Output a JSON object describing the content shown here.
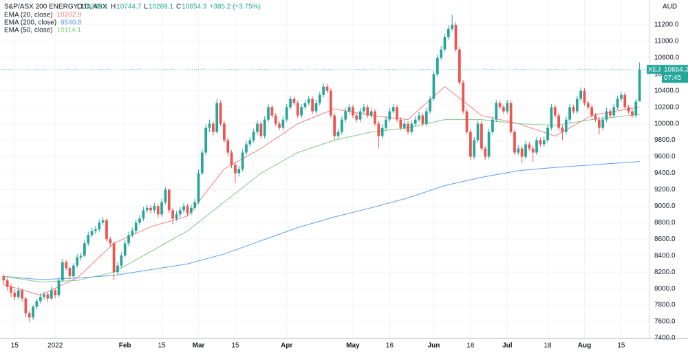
{
  "chart_data": {
    "type": "candlestick",
    "title": "S&P/ASX 200 ENERGY, 1D, ASX",
    "header_values": [
      {
        "label": "O",
        "value": 10269.1
      },
      {
        "label": "H",
        "value": 10744.7
      },
      {
        "label": "L",
        "value": 10269.1
      },
      {
        "label": "C",
        "value": 10654.3
      }
    ],
    "change": "+385.2 (+3.75%)",
    "currency": "AUD",
    "symbol": "XEJ",
    "countdown": "07:45",
    "up_color": "#26a69a",
    "down_color": "#ef5350",
    "grid": true,
    "xlim": [
      -1,
      175.5
    ],
    "ylim": [
      7400,
      11500
    ],
    "xticks": [
      {
        "value": 3,
        "label": "15"
      },
      {
        "value": 14,
        "label": "2022"
      },
      {
        "value": 33,
        "label": "Feb"
      },
      {
        "value": 43,
        "label": "15"
      },
      {
        "value": 53,
        "label": "Mar"
      },
      {
        "value": 63,
        "label": "15"
      },
      {
        "value": 77,
        "label": "Apr"
      },
      {
        "value": 95,
        "label": "May"
      },
      {
        "value": 105,
        "label": "16"
      },
      {
        "value": 117,
        "label": "Jun"
      },
      {
        "value": 127,
        "label": "16"
      },
      {
        "value": 137,
        "label": "Jul"
      },
      {
        "value": 148,
        "label": "18"
      },
      {
        "value": 158,
        "label": "Aug"
      },
      {
        "value": 168,
        "label": "15"
      }
    ],
    "yticks": [
      {
        "value": 7400,
        "label": "7400.0"
      },
      {
        "value": 7600,
        "label": "7600.0"
      },
      {
        "value": 7800,
        "label": "7800.0"
      },
      {
        "value": 8000,
        "label": "8000.0"
      },
      {
        "value": 8200,
        "label": "8200.0"
      },
      {
        "value": 8400,
        "label": "8400.0"
      },
      {
        "value": 8600,
        "label": "8600.0"
      },
      {
        "value": 8800,
        "label": "8800.0"
      },
      {
        "value": 9000,
        "label": "9000.0"
      },
      {
        "value": 9200,
        "label": "9200.0"
      },
      {
        "value": 9400,
        "label": "9400.0"
      },
      {
        "value": 9600,
        "label": "9600.0"
      },
      {
        "value": 9800,
        "label": "9800.0"
      },
      {
        "value": 10000,
        "label": "10000.0"
      },
      {
        "value": 10200,
        "label": "10200.0"
      },
      {
        "value": 10400,
        "label": "10400.0"
      },
      {
        "value": 10600,
        "label": "10600.0"
      },
      {
        "value": 10800,
        "label": "10800.0"
      },
      {
        "value": 11000,
        "label": "11000.0"
      },
      {
        "value": 11200,
        "label": "11200.0"
      }
    ],
    "ohlc": [
      [
        8150,
        8180,
        8050,
        8100
      ],
      [
        8100,
        8130,
        7980,
        8020
      ],
      [
        8020,
        8060,
        7900,
        7950
      ],
      [
        7950,
        7990,
        7860,
        7900
      ],
      [
        7900,
        8020,
        7870,
        7980
      ],
      [
        7980,
        8000,
        7840,
        7880
      ],
      [
        7880,
        7900,
        7650,
        7700
      ],
      [
        7700,
        7730,
        7600,
        7650
      ],
      [
        7650,
        7800,
        7620,
        7780
      ],
      [
        7780,
        7880,
        7750,
        7850
      ],
      [
        7850,
        7940,
        7820,
        7900
      ],
      [
        7900,
        7960,
        7870,
        7930
      ],
      [
        7930,
        7950,
        7840,
        7880
      ],
      [
        7880,
        8020,
        7860,
        7980
      ],
      [
        7980,
        8000,
        7880,
        7920
      ],
      [
        7920,
        8130,
        7900,
        8100
      ],
      [
        8100,
        8360,
        8080,
        8320
      ],
      [
        8320,
        8350,
        8220,
        8250
      ],
      [
        8250,
        8270,
        8110,
        8150
      ],
      [
        8150,
        8310,
        8130,
        8280
      ],
      [
        8280,
        8420,
        8250,
        8380
      ],
      [
        8380,
        8440,
        8340,
        8400
      ],
      [
        8400,
        8590,
        8380,
        8550
      ],
      [
        8550,
        8690,
        8520,
        8650
      ],
      [
        8650,
        8740,
        8620,
        8700
      ],
      [
        8700,
        8760,
        8660,
        8720
      ],
      [
        8720,
        8840,
        8690,
        8800
      ],
      [
        8800,
        8870,
        8770,
        8830
      ],
      [
        8830,
        8850,
        8570,
        8600
      ],
      [
        8600,
        8630,
        8510,
        8550
      ],
      [
        8550,
        8570,
        8100,
        8200
      ],
      [
        8200,
        8320,
        8170,
        8280
      ],
      [
        8280,
        8440,
        8250,
        8400
      ],
      [
        8400,
        8590,
        8380,
        8550
      ],
      [
        8550,
        8690,
        8520,
        8650
      ],
      [
        8650,
        8740,
        8620,
        8700
      ],
      [
        8700,
        8840,
        8670,
        8800
      ],
      [
        8800,
        8890,
        8770,
        8850
      ],
      [
        8850,
        8990,
        8820,
        8950
      ],
      [
        8950,
        9020,
        8920,
        8980
      ],
      [
        8980,
        9010,
        8910,
        8950
      ],
      [
        8950,
        9040,
        8920,
        9000
      ],
      [
        9000,
        9030,
        8860,
        8900
      ],
      [
        8900,
        9090,
        8870,
        9050
      ],
      [
        9050,
        9230,
        9020,
        9200
      ],
      [
        9200,
        9210,
        8920,
        8950
      ],
      [
        8950,
        8980,
        8780,
        8850
      ],
      [
        8850,
        8940,
        8820,
        8900
      ],
      [
        8900,
        8990,
        8870,
        8950
      ],
      [
        8950,
        9040,
        8920,
        9000
      ],
      [
        9000,
        9030,
        8880,
        8920
      ],
      [
        8920,
        9020,
        8890,
        8980
      ],
      [
        8980,
        9090,
        8950,
        9050
      ],
      [
        9050,
        9440,
        9030,
        9400
      ],
      [
        9400,
        9690,
        9380,
        9650
      ],
      [
        9650,
        9990,
        9620,
        9950
      ],
      [
        9950,
        10050,
        9900,
        10000
      ],
      [
        10000,
        10030,
        9860,
        9900
      ],
      [
        9900,
        10300,
        9880,
        10250
      ],
      [
        10250,
        10280,
        9970,
        10000
      ],
      [
        10000,
        10030,
        9770,
        9800
      ],
      [
        9800,
        9830,
        9610,
        9650
      ],
      [
        9650,
        9680,
        9460,
        9500
      ],
      [
        9500,
        9530,
        9280,
        9400
      ],
      [
        9400,
        9490,
        9360,
        9450
      ],
      [
        9450,
        9690,
        9420,
        9650
      ],
      [
        9650,
        9790,
        9620,
        9750
      ],
      [
        9750,
        9840,
        9720,
        9800
      ],
      [
        9800,
        9940,
        9770,
        9900
      ],
      [
        9900,
        10040,
        9870,
        10000
      ],
      [
        10000,
        10030,
        9820,
        9850
      ],
      [
        9850,
        10090,
        9820,
        10050
      ],
      [
        10050,
        10240,
        10020,
        10200
      ],
      [
        10200,
        10230,
        10070,
        10100
      ],
      [
        10100,
        10130,
        9970,
        10000
      ],
      [
        10000,
        10030,
        9920,
        9950
      ],
      [
        9950,
        10090,
        9920,
        10050
      ],
      [
        10050,
        10240,
        10020,
        10200
      ],
      [
        10200,
        10340,
        10170,
        10300
      ],
      [
        10300,
        10330,
        10220,
        10250
      ],
      [
        10250,
        10280,
        10070,
        10100
      ],
      [
        10100,
        10240,
        10070,
        10200
      ],
      [
        10200,
        10290,
        10170,
        10250
      ],
      [
        10250,
        10340,
        10220,
        10300
      ],
      [
        10300,
        10330,
        10120,
        10150
      ],
      [
        10150,
        10290,
        10120,
        10250
      ],
      [
        10250,
        10390,
        10220,
        10350
      ],
      [
        10350,
        10490,
        10320,
        10450
      ],
      [
        10450,
        10480,
        10370,
        10400
      ],
      [
        10400,
        10430,
        10070,
        10100
      ],
      [
        10100,
        10130,
        9800,
        9850
      ],
      [
        9850,
        9940,
        9820,
        9900
      ],
      [
        9900,
        10090,
        9870,
        10050
      ],
      [
        10050,
        10190,
        10020,
        10150
      ],
      [
        10150,
        10240,
        10120,
        10200
      ],
      [
        10200,
        10230,
        10070,
        10100
      ],
      [
        10100,
        10130,
        10020,
        10050
      ],
      [
        10050,
        10190,
        10020,
        10150
      ],
      [
        10150,
        10240,
        10120,
        10200
      ],
      [
        10200,
        10230,
        10070,
        10100
      ],
      [
        10100,
        10190,
        10070,
        10150
      ],
      [
        10150,
        10180,
        9970,
        10000
      ],
      [
        10000,
        10030,
        9700,
        9850
      ],
      [
        9850,
        9990,
        9820,
        9950
      ],
      [
        9950,
        10090,
        9920,
        10050
      ],
      [
        10050,
        10190,
        10020,
        10150
      ],
      [
        10150,
        10240,
        10120,
        10200
      ],
      [
        10200,
        10230,
        10020,
        10050
      ],
      [
        10050,
        10080,
        9920,
        9950
      ],
      [
        9950,
        10040,
        9920,
        10000
      ],
      [
        10000,
        10030,
        9870,
        9900
      ],
      [
        9900,
        10040,
        9870,
        10000
      ],
      [
        10000,
        10090,
        9970,
        10050
      ],
      [
        10050,
        10140,
        10020,
        10100
      ],
      [
        10100,
        10130,
        9970,
        10000
      ],
      [
        10000,
        10190,
        9970,
        10150
      ],
      [
        10150,
        10340,
        10120,
        10300
      ],
      [
        10300,
        10640,
        10270,
        10600
      ],
      [
        10600,
        10840,
        10570,
        10800
      ],
      [
        10800,
        10940,
        10770,
        10900
      ],
      [
        10900,
        11090,
        10870,
        11050
      ],
      [
        11050,
        11190,
        11020,
        11150
      ],
      [
        11150,
        11320,
        11120,
        11200
      ],
      [
        11200,
        11230,
        10870,
        10900
      ],
      [
        10900,
        10930,
        10470,
        10500
      ],
      [
        10500,
        10530,
        10120,
        10150
      ],
      [
        10150,
        10180,
        9870,
        9900
      ],
      [
        9900,
        9930,
        9560,
        9600
      ],
      [
        9600,
        9840,
        9570,
        9800
      ],
      [
        9800,
        10040,
        9770,
        10000
      ],
      [
        10000,
        10030,
        9670,
        9700
      ],
      [
        9700,
        9730,
        9560,
        9600
      ],
      [
        9600,
        9940,
        9570,
        9900
      ],
      [
        9900,
        10090,
        9870,
        10050
      ],
      [
        10050,
        10290,
        10020,
        10250
      ],
      [
        10250,
        10280,
        10170,
        10200
      ],
      [
        10200,
        10230,
        10120,
        10150
      ],
      [
        10150,
        10290,
        10120,
        10250
      ],
      [
        10250,
        10280,
        9870,
        9900
      ],
      [
        9900,
        9930,
        9620,
        9650
      ],
      [
        9650,
        9740,
        9620,
        9700
      ],
      [
        9700,
        9730,
        9520,
        9600
      ],
      [
        9600,
        9790,
        9570,
        9750
      ],
      [
        9750,
        9780,
        9670,
        9700
      ],
      [
        9700,
        9730,
        9540,
        9650
      ],
      [
        9650,
        9840,
        9620,
        9800
      ],
      [
        9800,
        9830,
        9720,
        9750
      ],
      [
        9750,
        9840,
        9720,
        9800
      ],
      [
        9800,
        9990,
        9770,
        9950
      ],
      [
        9950,
        10240,
        9920,
        10200
      ],
      [
        10200,
        10230,
        10070,
        10100
      ],
      [
        10100,
        10130,
        9920,
        9950
      ],
      [
        9950,
        9980,
        9800,
        9900
      ],
      [
        9900,
        10090,
        9870,
        10050
      ],
      [
        10050,
        10240,
        10020,
        10200
      ],
      [
        10200,
        10230,
        10120,
        10150
      ],
      [
        10150,
        10340,
        10120,
        10300
      ],
      [
        10300,
        10440,
        10270,
        10400
      ],
      [
        10400,
        10430,
        10220,
        10250
      ],
      [
        10250,
        10280,
        10170,
        10200
      ],
      [
        10200,
        10230,
        10070,
        10100
      ],
      [
        10100,
        10130,
        10020,
        10050
      ],
      [
        10050,
        10080,
        9870,
        9950
      ],
      [
        9950,
        10090,
        9920,
        10050
      ],
      [
        10050,
        10190,
        10020,
        10150
      ],
      [
        10150,
        10180,
        10070,
        10100
      ],
      [
        10100,
        10240,
        10070,
        10200
      ],
      [
        10200,
        10340,
        10170,
        10300
      ],
      [
        10300,
        10390,
        10270,
        10350
      ],
      [
        10350,
        10380,
        10170,
        10200
      ],
      [
        10200,
        10230,
        10120,
        10150
      ],
      [
        10150,
        10180,
        10070,
        10100
      ],
      [
        10100,
        10300,
        10070,
        10269.1
      ],
      [
        10269.1,
        10744.7,
        10269.1,
        10654.3
      ]
    ],
    "series": [
      {
        "name": "EMA (20, close)",
        "color": "#f77c80",
        "x": [
          0,
          10,
          20,
          30,
          40,
          50,
          60,
          70,
          80,
          90,
          100,
          110,
          120,
          130,
          140,
          150,
          160,
          173
        ],
        "values": [
          8050,
          7920,
          8130,
          8550,
          8750,
          8880,
          9450,
          9700,
          10000,
          10180,
          10100,
          10050,
          10450,
          10100,
          10000,
          9850,
          10100,
          10202.9
        ]
      },
      {
        "name": "EMA (200, close)",
        "color": "#5b9cf6",
        "x": [
          0,
          10,
          20,
          30,
          40,
          50,
          60,
          70,
          80,
          90,
          100,
          110,
          120,
          130,
          140,
          150,
          160,
          173
        ],
        "values": [
          8150,
          8110,
          8130,
          8160,
          8230,
          8300,
          8420,
          8580,
          8740,
          8870,
          8980,
          9100,
          9250,
          9350,
          9430,
          9470,
          9500,
          9540.8
        ]
      },
      {
        "name": "EMA (50, close)",
        "color": "#81c784",
        "x": [
          0,
          10,
          20,
          30,
          40,
          50,
          60,
          70,
          80,
          90,
          100,
          110,
          120,
          130,
          140,
          150,
          160,
          173
        ],
        "values": [
          8150,
          8080,
          8100,
          8200,
          8450,
          8700,
          9050,
          9400,
          9650,
          9800,
          9900,
          9950,
          10050,
          10050,
          10000,
          9980,
          10050,
          10114.1
        ]
      }
    ]
  }
}
